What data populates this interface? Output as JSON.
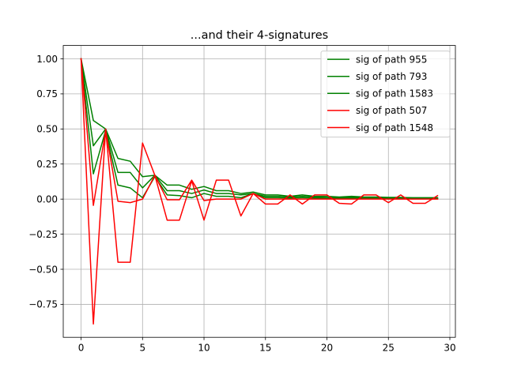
{
  "chart_data": {
    "type": "line",
    "title": "...and their 4-signatures",
    "xlabel": "",
    "ylabel": "",
    "xlim": [
      -1.45,
      30.45
    ],
    "ylim": [
      -0.985,
      1.095
    ],
    "xticks": [
      0,
      5,
      10,
      15,
      20,
      25,
      30
    ],
    "yticks": [
      -0.75,
      -0.5,
      -0.25,
      0.0,
      0.25,
      0.5,
      0.75,
      1.0
    ],
    "xtick_labels": [
      "0",
      "5",
      "10",
      "15",
      "20",
      "25",
      "30"
    ],
    "ytick_labels": [
      "−0.75",
      "−0.50",
      "−0.25",
      "0.00",
      "0.25",
      "0.50",
      "0.75",
      "1.00"
    ],
    "grid": true,
    "legend_position": "upper right",
    "x": [
      0,
      1,
      2,
      3,
      4,
      5,
      6,
      7,
      8,
      9,
      10,
      11,
      12,
      13,
      14,
      15,
      16,
      17,
      18,
      19,
      20,
      21,
      22,
      23,
      24,
      25,
      26,
      27,
      28,
      29
    ],
    "series": [
      {
        "name": "sig of path 955",
        "color": "#008000",
        "values": [
          1.0,
          0.56,
          0.5,
          0.29,
          0.27,
          0.16,
          0.17,
          0.1,
          0.1,
          0.07,
          0.09,
          0.06,
          0.06,
          0.04,
          0.05,
          0.03,
          0.03,
          0.02,
          0.03,
          0.02,
          0.02,
          0.015,
          0.02,
          0.015,
          0.015,
          0.012,
          0.012,
          0.01,
          0.01,
          0.01
        ]
      },
      {
        "name": "sig of path 793",
        "color": "#008000",
        "values": [
          1.0,
          0.38,
          0.5,
          0.19,
          0.19,
          0.08,
          0.17,
          0.06,
          0.06,
          0.04,
          0.065,
          0.04,
          0.04,
          0.03,
          0.04,
          0.02,
          0.02,
          0.015,
          0.02,
          0.015,
          0.01,
          0.01,
          0.012,
          0.01,
          0.01,
          0.008,
          0.008,
          0.006,
          0.006,
          0.005
        ]
      },
      {
        "name": "sig of path 1583",
        "color": "#008000",
        "values": [
          1.0,
          0.18,
          0.49,
          0.1,
          0.08,
          0.01,
          0.16,
          0.03,
          0.025,
          0.01,
          0.04,
          0.02,
          0.02,
          0.01,
          0.04,
          0.01,
          0.01,
          0.008,
          0.01,
          0.008,
          0.006,
          0.006,
          0.005,
          0.005,
          0.004,
          0.004,
          0.004,
          0.003,
          0.003,
          0.003
        ]
      },
      {
        "name": "sig of path 507",
        "color": "#ff0000",
        "values": [
          1.0,
          -0.045,
          0.49,
          -0.015,
          -0.025,
          0.0,
          0.17,
          -0.005,
          -0.005,
          0.135,
          -0.01,
          0.0,
          0.0,
          0.0,
          0.04,
          0.0,
          0.0,
          0.0,
          0.0,
          0.0,
          0.0,
          0.0,
          0.0,
          0.0,
          0.0,
          0.0,
          0.0,
          0.0,
          0.0,
          0.0
        ]
      },
      {
        "name": "sig of path 1548",
        "color": "#ff0000",
        "values": [
          1.0,
          -0.89,
          0.5,
          -0.45,
          -0.45,
          0.4,
          0.17,
          -0.15,
          -0.15,
          0.13,
          -0.15,
          0.135,
          0.135,
          -0.12,
          0.04,
          -0.035,
          -0.035,
          0.03,
          -0.035,
          0.03,
          0.03,
          -0.03,
          -0.035,
          0.03,
          0.03,
          -0.025,
          0.03,
          -0.03,
          -0.03,
          0.025
        ]
      }
    ]
  }
}
